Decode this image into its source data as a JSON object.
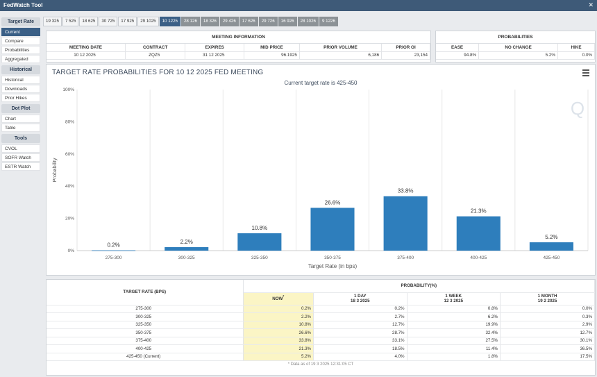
{
  "app": {
    "title": "FedWatch Tool",
    "close": "✕"
  },
  "sidebar": {
    "sections": [
      {
        "heading": "Target Rate",
        "items": [
          "Current",
          "Compare",
          "Probabilities",
          "Aggregated"
        ]
      },
      {
        "heading": "Historical",
        "items": [
          "Historical",
          "Downloads",
          "Prior Hikes"
        ]
      },
      {
        "heading": "Dot Plot",
        "items": [
          "Chart",
          "Table"
        ]
      },
      {
        "heading": "Tools",
        "items": [
          "CVOL",
          "SOFR Watch",
          "ESTR Watch"
        ]
      }
    ],
    "active_item": "Current"
  },
  "tabs": [
    "19 325",
    "7 525",
    "18 625",
    "30 725",
    "17 925",
    "29 1025",
    "10 1225",
    "28 126",
    "18 326",
    "29 426",
    "17 626",
    "29 726",
    "16 926",
    "28 1026",
    "9 1226"
  ],
  "active_tab": "10 1225",
  "meeting_info": {
    "heading": "MEETING INFORMATION",
    "columns": [
      "MEETING DATE",
      "CONTRACT",
      "EXPIRES",
      "MID PRICE",
      "PRIOR VOLUME",
      "PRIOR OI"
    ],
    "values": [
      "10 12 2025",
      "ZQZ5",
      "31 12 2025",
      "96.1925",
      "6,186",
      "23,154"
    ]
  },
  "probabilities_summary": {
    "heading": "PROBABILITIES",
    "columns": [
      "EASE",
      "NO CHANGE",
      "HIKE"
    ],
    "values": [
      "94.8%",
      "5.2%",
      "0.0%"
    ]
  },
  "chart": {
    "title": "TARGET RATE PROBABILITIES FOR 10 12 2025 FED MEETING",
    "subtitle": "Current target rate is 425-450",
    "menu_icon": "hamburger-menu-icon",
    "watermark": "Q"
  },
  "chart_data": {
    "type": "bar",
    "categories": [
      "275-300",
      "300-325",
      "325-350",
      "350-375",
      "375-400",
      "400-425",
      "425-450"
    ],
    "values": [
      0.2,
      2.2,
      10.8,
      26.6,
      33.8,
      21.3,
      5.2
    ],
    "data_labels": [
      "0.2%",
      "2.2%",
      "10.8%",
      "26.6%",
      "33.8%",
      "21.3%",
      "5.2%"
    ],
    "xlabel": "Target Rate (in bps)",
    "ylabel": "Probability",
    "ylim": [
      0,
      100
    ],
    "yticks": [
      "0%",
      "20%",
      "40%",
      "60%",
      "80%",
      "100%"
    ],
    "ytick_values": [
      0,
      20,
      40,
      60,
      80,
      100
    ],
    "bar_color": "#2e7ebc",
    "grid": "vertical"
  },
  "prob_table": {
    "col_rate": "TARGET RATE (BPS)",
    "group_heading": "PROBABILITY(%)",
    "headers": [
      {
        "label": "NOW",
        "sub": "*"
      },
      {
        "label": "1 DAY",
        "sub": "18 3 2025"
      },
      {
        "label": "1 WEEK",
        "sub": "12 3 2025"
      },
      {
        "label": "1 MONTH",
        "sub": "19 2 2025"
      }
    ],
    "rows": [
      {
        "rate": "275-300",
        "now": "0.2%",
        "day": "0.2%",
        "week": "0.8%",
        "month": "0.0%"
      },
      {
        "rate": "300-325",
        "now": "2.2%",
        "day": "2.7%",
        "week": "6.2%",
        "month": "0.3%"
      },
      {
        "rate": "325-350",
        "now": "10.8%",
        "day": "12.7%",
        "week": "19.9%",
        "month": "2.9%"
      },
      {
        "rate": "350-375",
        "now": "26.6%",
        "day": "28.7%",
        "week": "32.4%",
        "month": "12.7%"
      },
      {
        "rate": "375-400",
        "now": "33.8%",
        "day": "33.1%",
        "week": "27.5%",
        "month": "30.1%"
      },
      {
        "rate": "400-425",
        "now": "21.3%",
        "day": "18.5%",
        "week": "11.4%",
        "month": "36.5%"
      },
      {
        "rate": "425-450 (Current)",
        "now": "5.2%",
        "day": "4.0%",
        "week": "1.8%",
        "month": "17.5%"
      }
    ],
    "footnote": "* Data as of 19 3 2025 12:31:05 CT"
  }
}
